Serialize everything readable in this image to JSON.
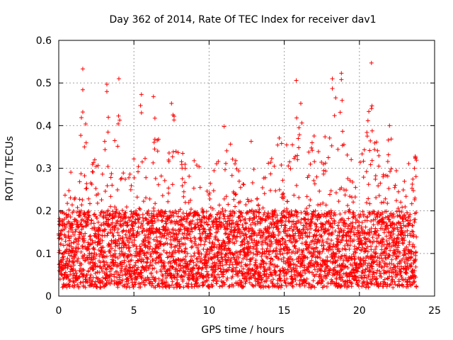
{
  "chart_data": {
    "type": "scatter",
    "title": "Day 362 of 2014, Rate Of TEC Index for receiver dav1",
    "xlabel": "GPS time / hours",
    "ylabel": "ROTI / TECUs",
    "xlim": [
      0,
      25
    ],
    "ylim": [
      0,
      0.6
    ],
    "xticks": [
      0,
      5,
      10,
      15,
      20,
      25
    ],
    "yticks": [
      0,
      0.1,
      0.2,
      0.3,
      0.4,
      0.5,
      0.6
    ],
    "xtick_labels": [
      "0",
      "5",
      "10",
      "15",
      "20",
      "25"
    ],
    "ytick_labels": [
      "0",
      "0.1",
      "0.2",
      "0.3",
      "0.4",
      "0.5",
      "0.6"
    ],
    "grid": true,
    "marker": "+",
    "color": "#ff0000",
    "series": [
      {
        "name": "dav1",
        "x_range": [
          0,
          23.8
        ],
        "envelope": [
          [
            0.0,
            0.18
          ],
          [
            0.5,
            0.26
          ],
          [
            0.8,
            0.33
          ],
          [
            1.0,
            0.22
          ],
          [
            1.3,
            0.3
          ],
          [
            1.6,
            0.53
          ],
          [
            2.0,
            0.28
          ],
          [
            2.3,
            0.33
          ],
          [
            2.7,
            0.3
          ],
          [
            3.0,
            0.38
          ],
          [
            3.2,
            0.49
          ],
          [
            3.5,
            0.33
          ],
          [
            3.8,
            0.4
          ],
          [
            4.0,
            0.51
          ],
          [
            4.3,
            0.3
          ],
          [
            4.8,
            0.32
          ],
          [
            5.2,
            0.36
          ],
          [
            5.5,
            0.47
          ],
          [
            5.9,
            0.33
          ],
          [
            6.3,
            0.46
          ],
          [
            6.8,
            0.35
          ],
          [
            7.3,
            0.43
          ],
          [
            7.6,
            0.45
          ],
          [
            8.0,
            0.38
          ],
          [
            8.5,
            0.3
          ],
          [
            9.0,
            0.32
          ],
          [
            9.5,
            0.3
          ],
          [
            10.0,
            0.3
          ],
          [
            10.6,
            0.32
          ],
          [
            11.0,
            0.4
          ],
          [
            11.5,
            0.35
          ],
          [
            12.0,
            0.3
          ],
          [
            12.5,
            0.25
          ],
          [
            13.0,
            0.3
          ],
          [
            13.5,
            0.28
          ],
          [
            14.0,
            0.32
          ],
          [
            14.5,
            0.37
          ],
          [
            15.0,
            0.38
          ],
          [
            15.5,
            0.4
          ],
          [
            15.8,
            0.51
          ],
          [
            16.2,
            0.45
          ],
          [
            16.6,
            0.37
          ],
          [
            17.0,
            0.38
          ],
          [
            17.5,
            0.4
          ],
          [
            18.0,
            0.4
          ],
          [
            18.3,
            0.51
          ],
          [
            18.8,
            0.52
          ],
          [
            19.2,
            0.38
          ],
          [
            19.6,
            0.35
          ],
          [
            20.0,
            0.35
          ],
          [
            20.5,
            0.4
          ],
          [
            20.8,
            0.55
          ],
          [
            21.2,
            0.38
          ],
          [
            21.6,
            0.33
          ],
          [
            22.0,
            0.4
          ],
          [
            22.5,
            0.3
          ],
          [
            23.0,
            0.28
          ],
          [
            23.5,
            0.34
          ],
          [
            23.8,
            0.33
          ]
        ],
        "outliers": [
          [
            1.6,
            0.533
          ],
          [
            1.6,
            0.484
          ],
          [
            1.6,
            0.432
          ],
          [
            3.2,
            0.497
          ],
          [
            3.2,
            0.48
          ],
          [
            4.0,
            0.51
          ],
          [
            5.5,
            0.473
          ],
          [
            5.5,
            0.43
          ],
          [
            6.3,
            0.468
          ],
          [
            7.5,
            0.452
          ],
          [
            7.6,
            0.425
          ],
          [
            11.0,
            0.398
          ],
          [
            12.8,
            0.363
          ],
          [
            15.8,
            0.506
          ],
          [
            16.1,
            0.452
          ],
          [
            18.2,
            0.51
          ],
          [
            18.2,
            0.487
          ],
          [
            18.8,
            0.523
          ],
          [
            18.8,
            0.508
          ],
          [
            20.8,
            0.547
          ],
          [
            20.8,
            0.44
          ],
          [
            22.0,
            0.4
          ]
        ],
        "typical_range": [
          0.02,
          0.2
        ]
      }
    ]
  }
}
